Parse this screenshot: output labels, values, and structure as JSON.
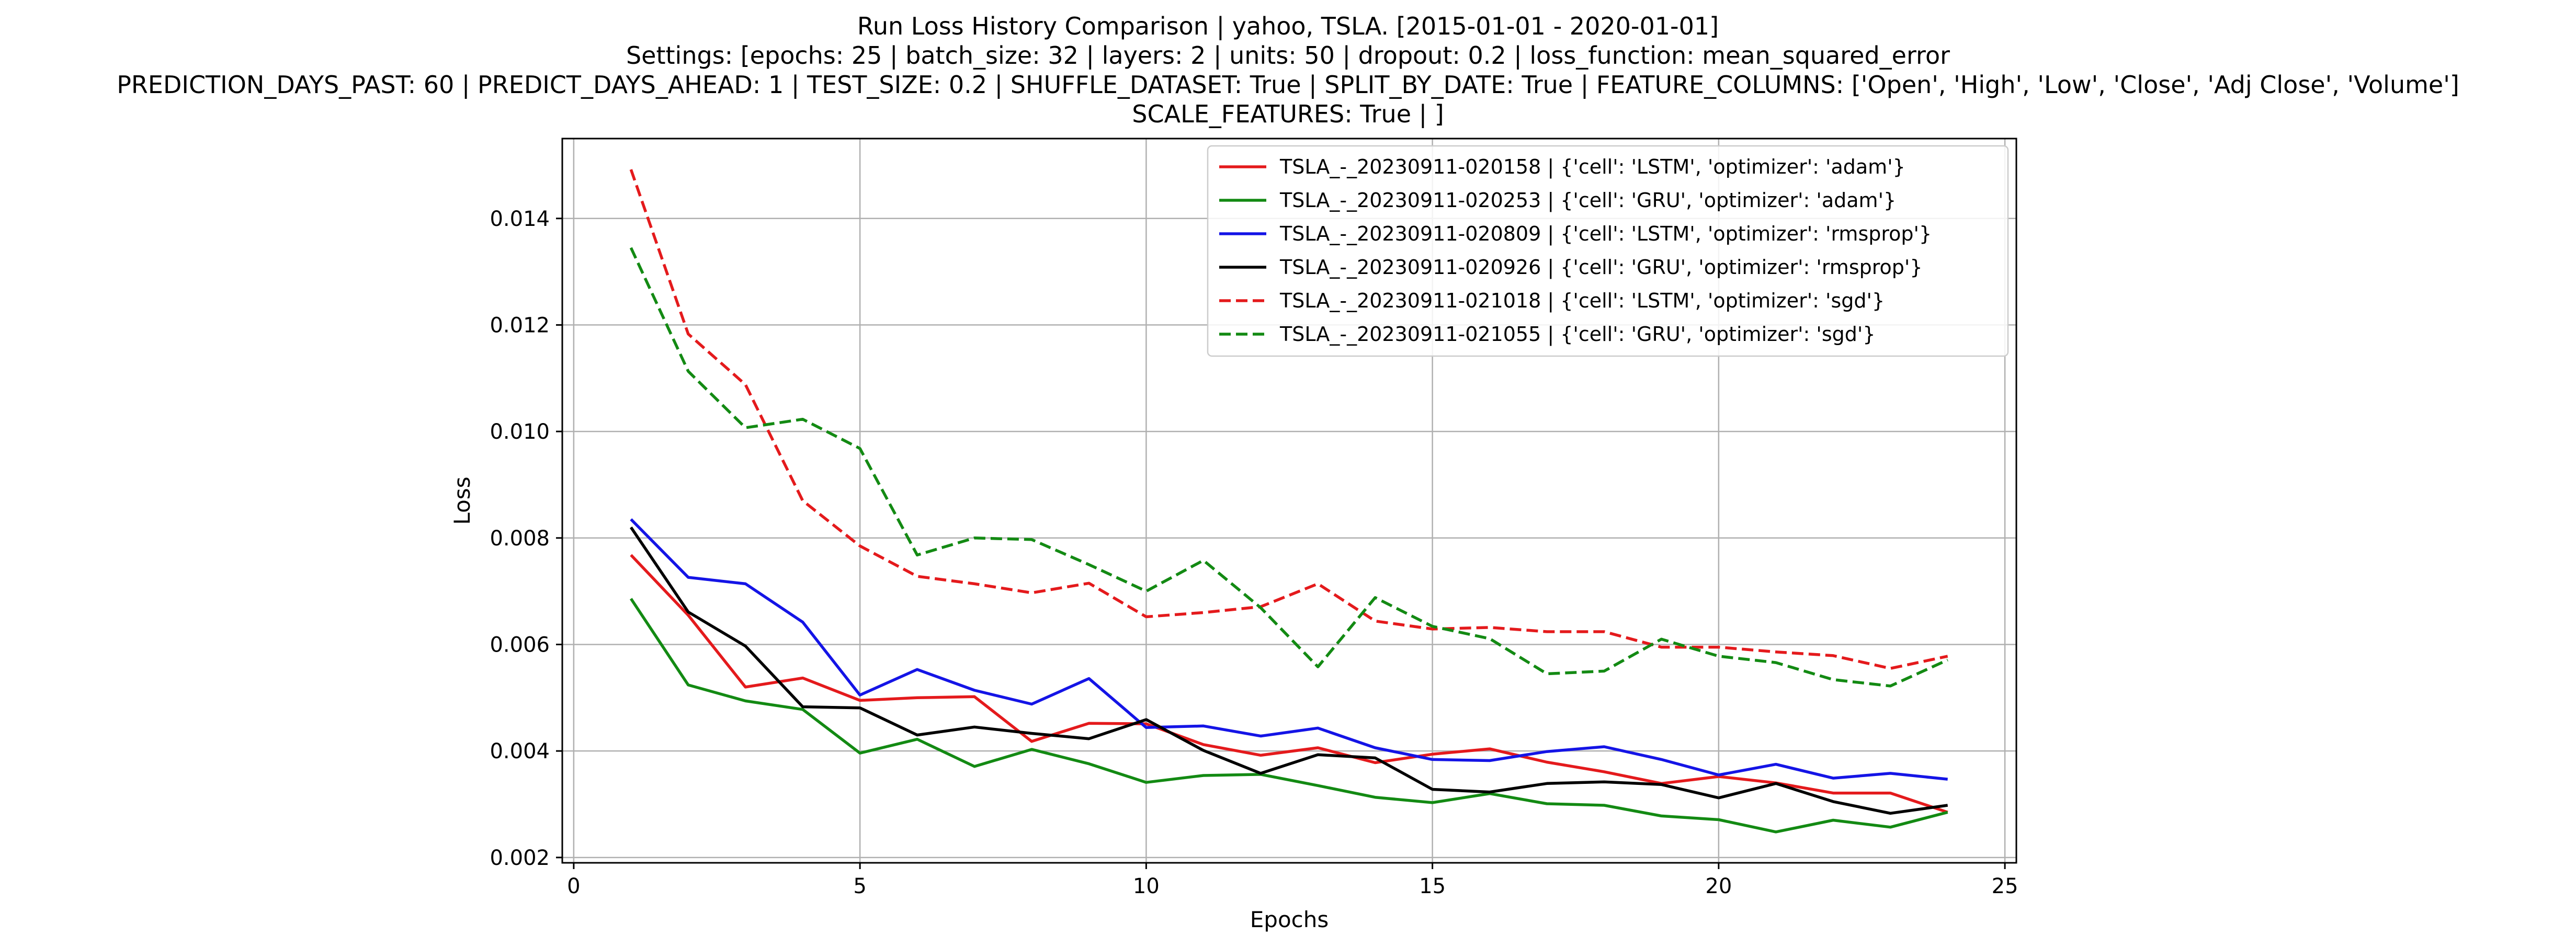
{
  "chart_data": {
    "type": "line",
    "title_lines": [
      "Run Loss History Comparison | yahoo, TSLA. [2015-01-01 - 2020-01-01]",
      "Settings: [epochs: 25 | batch_size: 32 | layers: 2 | units: 50 | dropout: 0.2 | loss_function: mean_squared_error",
      "PREDICTION_DAYS_PAST: 60 | PREDICT_DAYS_AHEAD: 1 | TEST_SIZE: 0.2 | SHUFFLE_DATASET: True | SPLIT_BY_DATE: True | FEATURE_COLUMNS: ['Open', 'High', 'Low', 'Close', 'Adj Close', 'Volume']",
      "SCALE_FEATURES: True | ]"
    ],
    "xlabel": "Epochs",
    "ylabel": "Loss",
    "xlim": [
      -0.2,
      25.2
    ],
    "ylim": [
      0.0019,
      0.0155
    ],
    "xticks": [
      0,
      5,
      10,
      15,
      20,
      25
    ],
    "xtick_labels": [
      "0",
      "5",
      "10",
      "15",
      "20",
      "25"
    ],
    "yticks": [
      0.002,
      0.004,
      0.006,
      0.008,
      0.01,
      0.012,
      0.014
    ],
    "ytick_labels": [
      "0.002",
      "0.004",
      "0.006",
      "0.008",
      "0.010",
      "0.012",
      "0.014"
    ],
    "grid": true,
    "legend_position": "top-right",
    "x": [
      1,
      2,
      3,
      4,
      5,
      6,
      7,
      8,
      9,
      10,
      11,
      12,
      13,
      14,
      15,
      16,
      17,
      18,
      19,
      20,
      21,
      22,
      23,
      24
    ],
    "series": [
      {
        "name": "TSLA_-_20230911-020158 | {'cell': 'LSTM', 'optimizer': 'adam'}",
        "color": "#e41a1c",
        "style": "solid",
        "values": [
          0.00768,
          0.00655,
          0.0052,
          0.00537,
          0.00495,
          0.005,
          0.00502,
          0.00418,
          0.00452,
          0.00451,
          0.00412,
          0.00392,
          0.00406,
          0.00378,
          0.00394,
          0.00404,
          0.00379,
          0.00361,
          0.00339,
          0.00352,
          0.0034,
          0.00321,
          0.00321,
          0.00285
        ]
      },
      {
        "name": "TSLA_-_20230911-020253 | {'cell': 'GRU', 'optimizer': 'adam'}",
        "color": "#138a13",
        "style": "solid",
        "values": [
          0.00686,
          0.00524,
          0.00494,
          0.00478,
          0.00396,
          0.00422,
          0.00371,
          0.00403,
          0.00376,
          0.00341,
          0.00354,
          0.00356,
          0.00335,
          0.00313,
          0.00303,
          0.0032,
          0.00301,
          0.00298,
          0.00278,
          0.00271,
          0.00248,
          0.0027,
          0.00257,
          0.00285
        ]
      },
      {
        "name": "TSLA_-_20230911-020809 | {'cell': 'LSTM', 'optimizer': 'rmsprop'}",
        "color": "#1414e6",
        "style": "solid",
        "values": [
          0.00835,
          0.00726,
          0.00714,
          0.00642,
          0.00505,
          0.00553,
          0.00514,
          0.00488,
          0.00536,
          0.00444,
          0.00447,
          0.00428,
          0.00443,
          0.00406,
          0.00384,
          0.00382,
          0.00399,
          0.00408,
          0.00384,
          0.00355,
          0.00375,
          0.00349,
          0.00358,
          0.00347
        ]
      },
      {
        "name": "TSLA_-_20230911-020926 | {'cell': 'GRU', 'optimizer': 'rmsprop'}",
        "color": "#000000",
        "style": "solid",
        "values": [
          0.0082,
          0.00661,
          0.00597,
          0.00483,
          0.00481,
          0.0043,
          0.00445,
          0.00433,
          0.00423,
          0.00459,
          0.00401,
          0.00358,
          0.00393,
          0.00387,
          0.00328,
          0.00323,
          0.00339,
          0.00342,
          0.00337,
          0.00312,
          0.00339,
          0.00305,
          0.00283,
          0.00298
        ]
      },
      {
        "name": "TSLA_-_20230911-021018 | {'cell': 'LSTM', 'optimizer': 'sgd'}",
        "color": "#e41a1c",
        "style": "dashed",
        "values": [
          0.01492,
          0.01183,
          0.01088,
          0.0087,
          0.00785,
          0.00728,
          0.00714,
          0.00697,
          0.00715,
          0.00652,
          0.0066,
          0.00671,
          0.00714,
          0.00644,
          0.00629,
          0.00632,
          0.00624,
          0.00624,
          0.00595,
          0.00595,
          0.00586,
          0.00579,
          0.00555,
          0.00578
        ]
      },
      {
        "name": "TSLA_-_20230911-021055 | {'cell': 'GRU', 'optimizer': 'sgd'}",
        "color": "#138a13",
        "style": "dashed",
        "values": [
          0.01345,
          0.01113,
          0.01007,
          0.01023,
          0.00968,
          0.00768,
          0.008,
          0.00797,
          0.0075,
          0.007,
          0.00758,
          0.00669,
          0.00558,
          0.00688,
          0.00634,
          0.00611,
          0.00545,
          0.0055,
          0.0061,
          0.00578,
          0.00566,
          0.00534,
          0.00522,
          0.00571
        ]
      }
    ]
  }
}
